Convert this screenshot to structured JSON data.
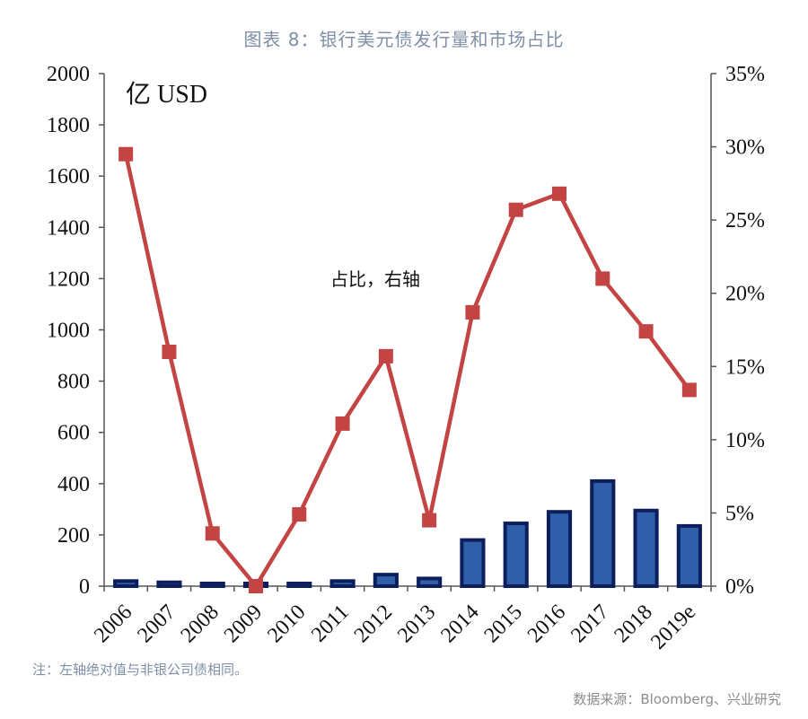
{
  "title": "图表 8：银行美元债发行量和市场占比",
  "note": "注：左轴绝对值与非银公司债相同。",
  "source": "数据来源：Bloomberg、兴业研究",
  "colors": {
    "bar_fill": "#2f5fa8",
    "bar_stroke": "#0c1f5c",
    "line": "#c44444",
    "marker": "#c44444",
    "axis": "#555555"
  },
  "chart_data": {
    "type": "bar+line",
    "unit_label": "亿 USD",
    "annotation": "占比，右轴",
    "categories": [
      "2006",
      "2007",
      "2008",
      "2009",
      "2010",
      "2011",
      "2012",
      "2013",
      "2014",
      "2015",
      "2016",
      "2017",
      "2018",
      "2019e"
    ],
    "series": [
      {
        "type": "bar",
        "axis": "left",
        "values": [
          20,
          15,
          5,
          0,
          10,
          20,
          45,
          30,
          180,
          245,
          290,
          410,
          295,
          235
        ]
      },
      {
        "type": "line",
        "axis": "right",
        "values": [
          29.5,
          16.0,
          3.6,
          0.0,
          4.9,
          11.1,
          15.7,
          4.5,
          18.7,
          25.7,
          26.8,
          21.0,
          17.4,
          13.4
        ]
      }
    ],
    "y_left": {
      "min": 0,
      "max": 2000,
      "ticks": [
        "0",
        "200",
        "400",
        "600",
        "800",
        "1000",
        "1200",
        "1400",
        "1600",
        "1800",
        "2000"
      ]
    },
    "y_right": {
      "min": 0,
      "max": 35,
      "ticks": [
        "0%",
        "5%",
        "10%",
        "15%",
        "20%",
        "25%",
        "30%",
        "35%"
      ]
    },
    "grid": false,
    "legend": "none"
  }
}
